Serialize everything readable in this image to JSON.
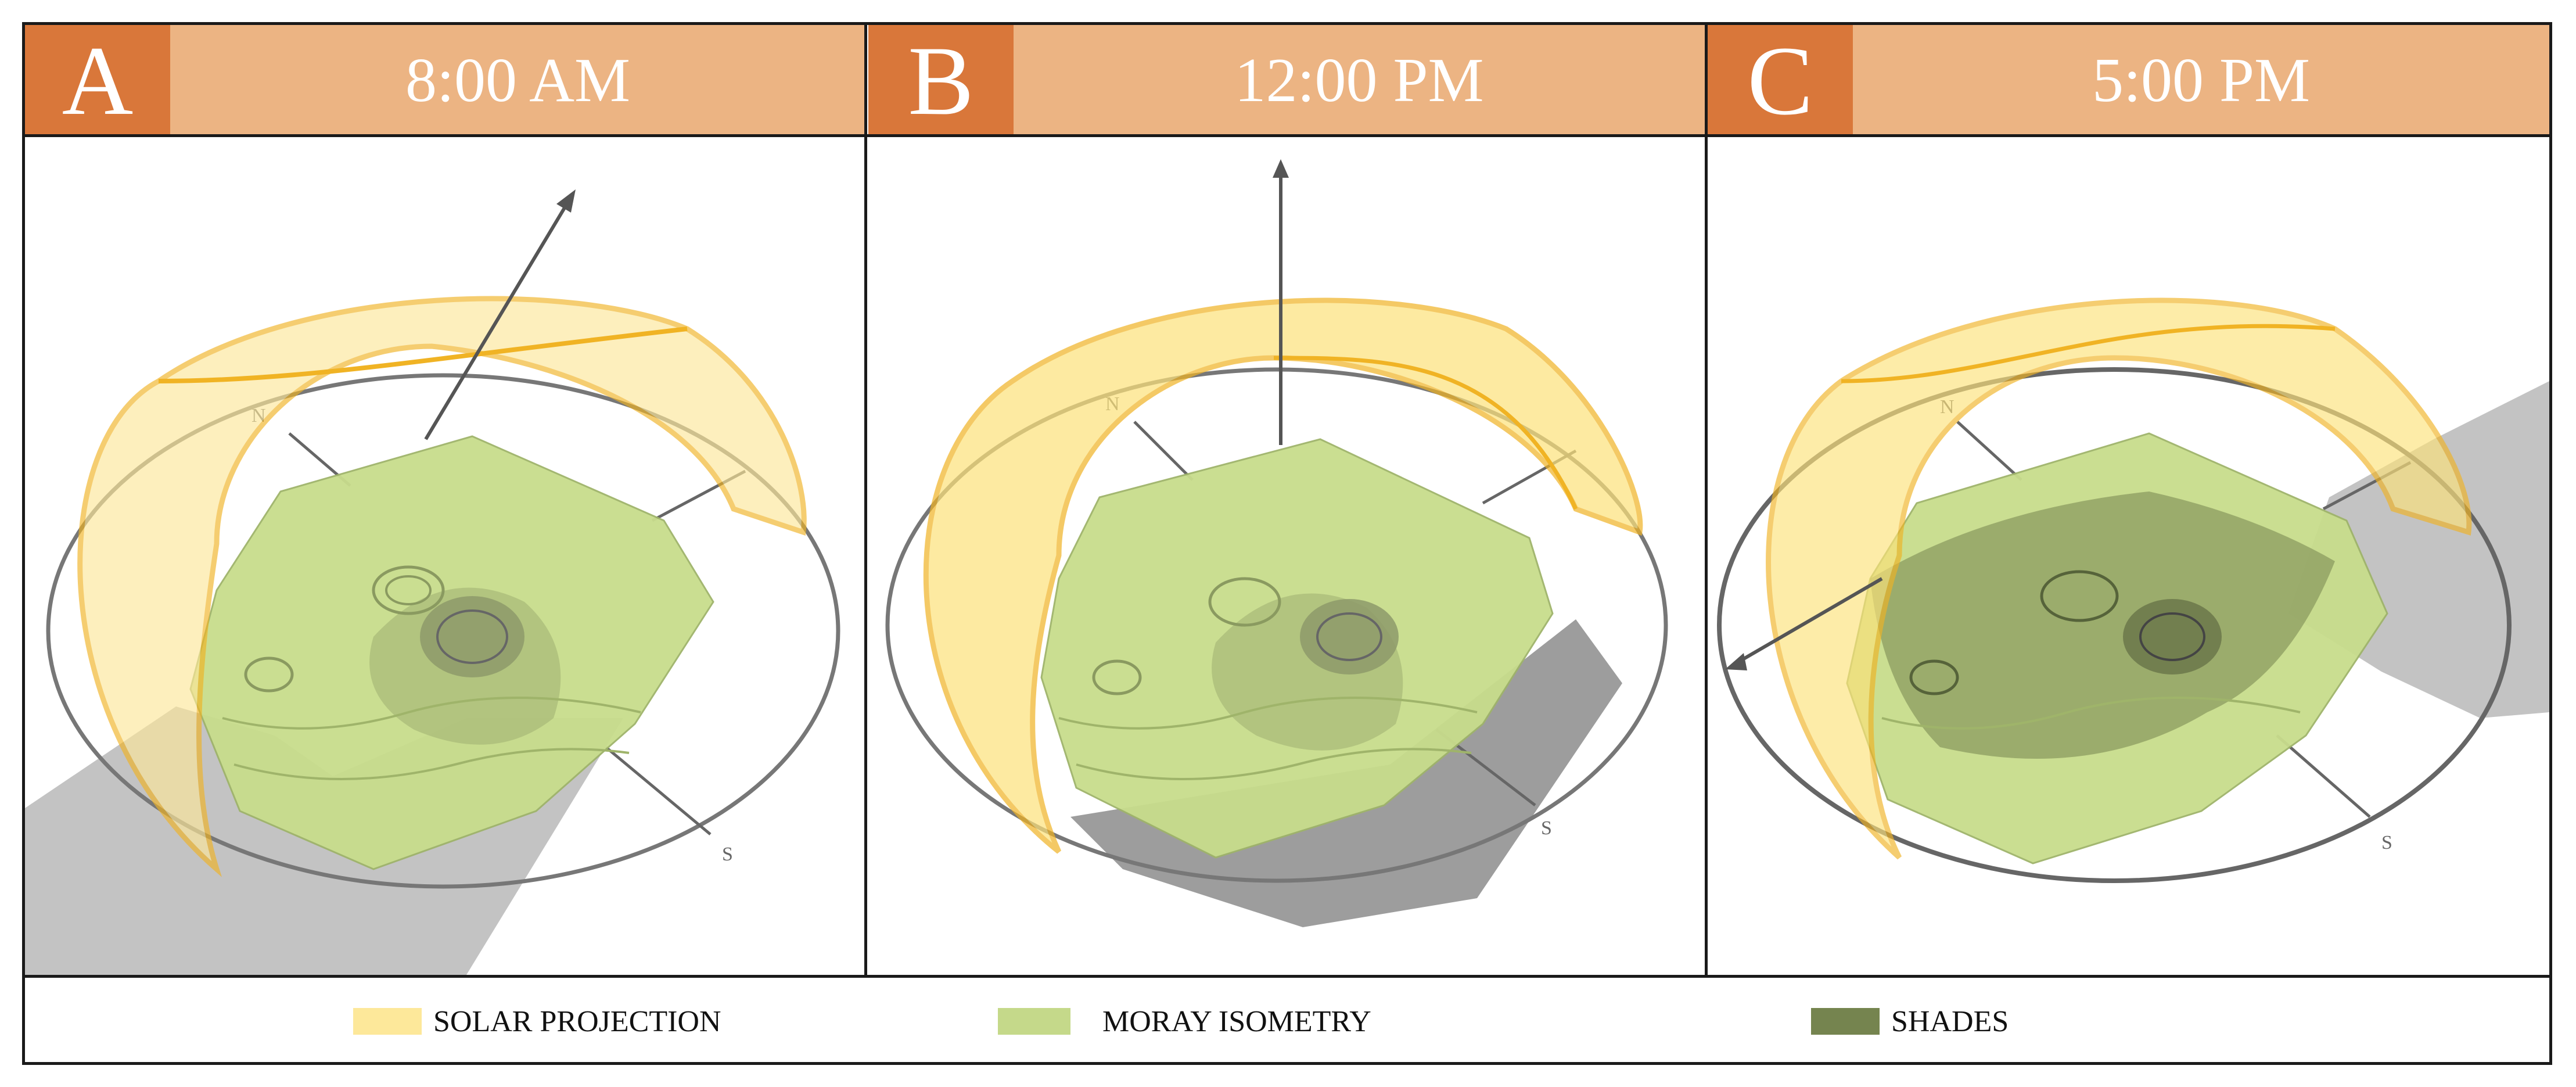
{
  "panels": [
    {
      "letter": "A",
      "time": "8:00 AM"
    },
    {
      "letter": "B",
      "time": "12:00 PM"
    },
    {
      "letter": "C",
      "time": "5:00 PM"
    }
  ],
  "compass": {
    "north": "N",
    "south": "S"
  },
  "legend": [
    {
      "label": "SOLAR PROJECTION",
      "color": "#fde89a"
    },
    {
      "label": "MORAY ISOMETRY",
      "color": "#c5d98a"
    },
    {
      "label": "SHADES",
      "color": "#75844f"
    }
  ]
}
